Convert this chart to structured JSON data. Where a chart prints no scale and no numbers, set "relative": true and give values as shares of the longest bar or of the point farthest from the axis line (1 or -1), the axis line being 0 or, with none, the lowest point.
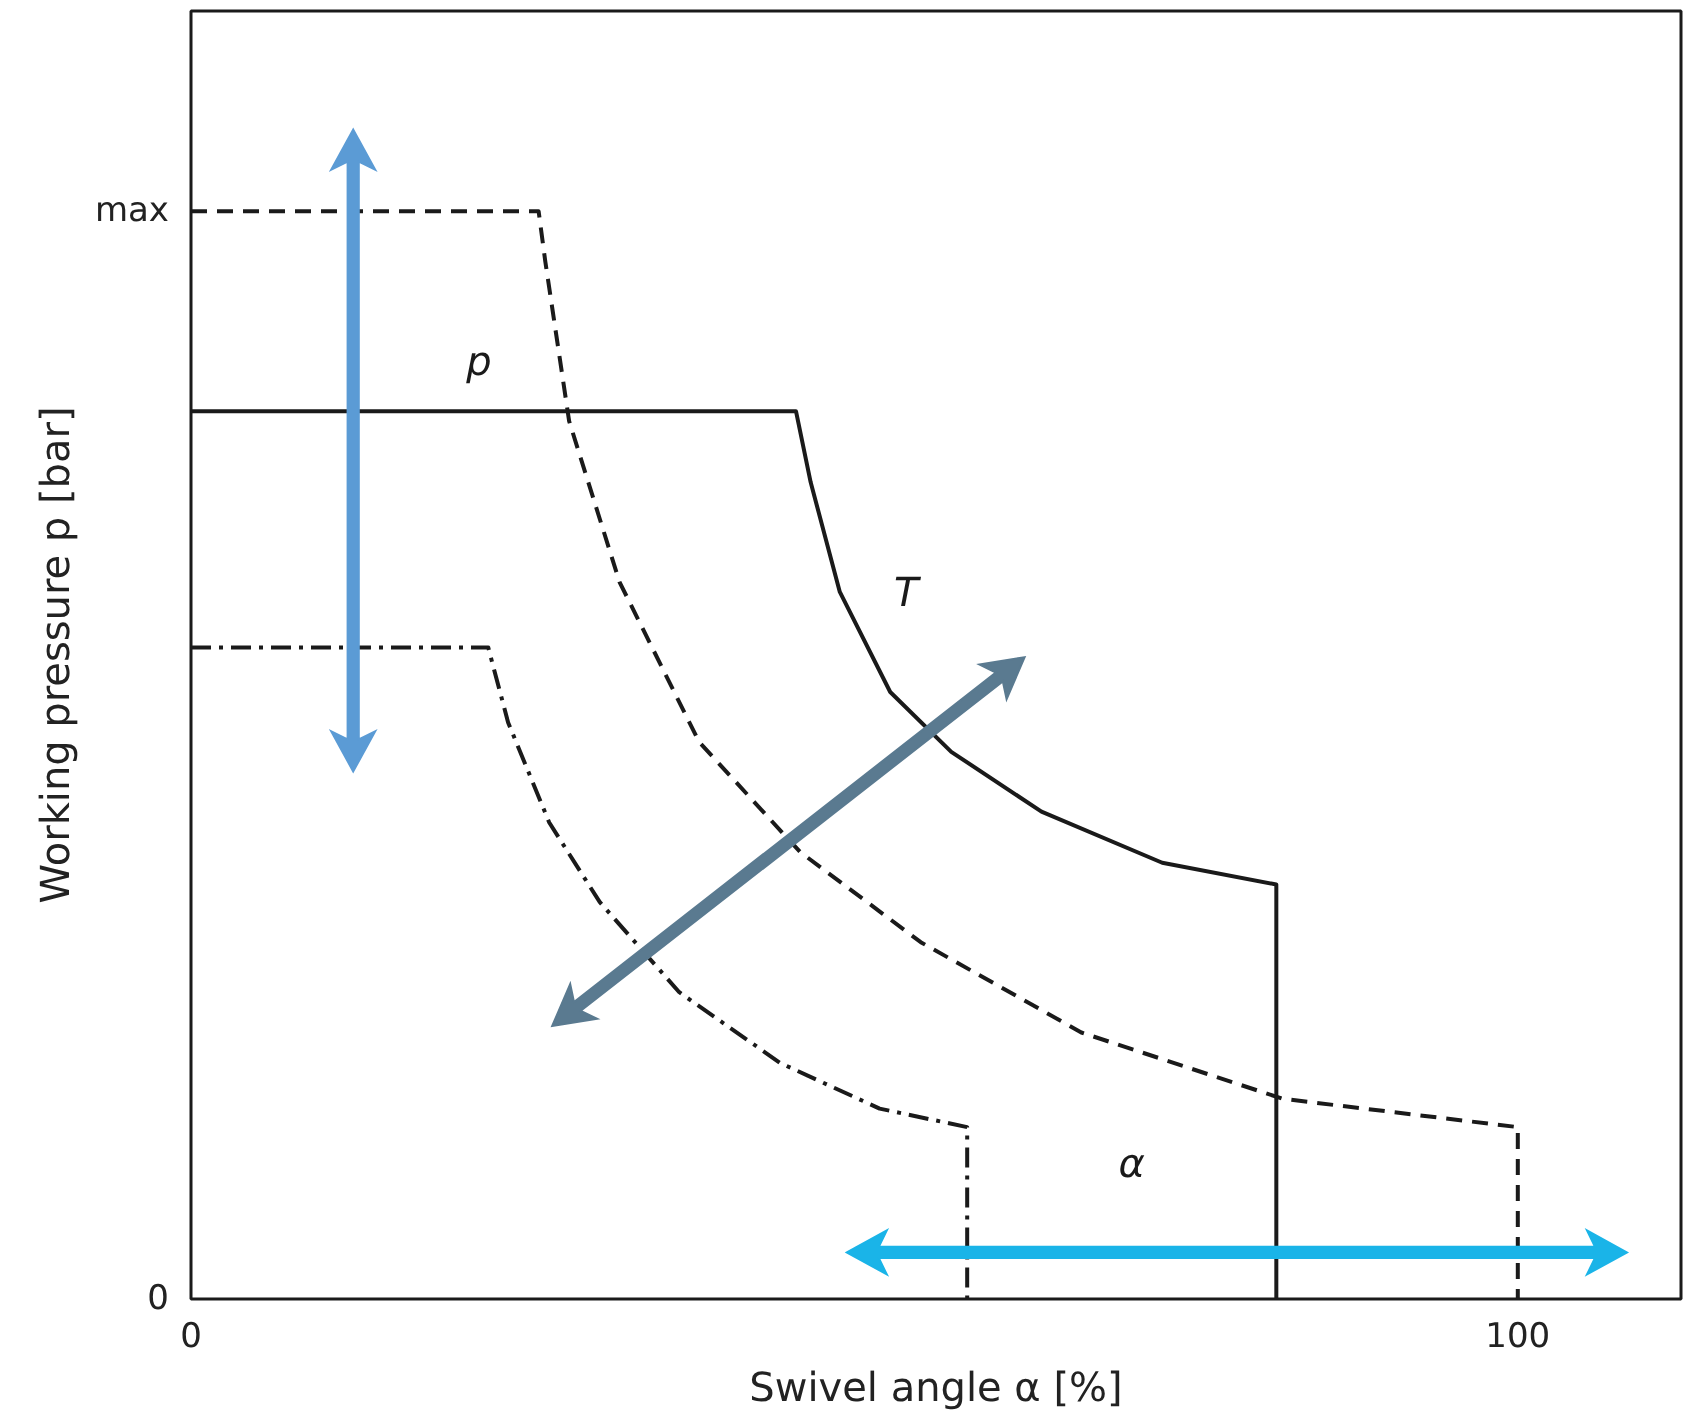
{
  "chart_data": {
    "type": "line",
    "relative": true,
    "xlabel": "Swivel angle α [%]",
    "ylabel": "Working pressure p [bar]",
    "xlim": [
      0,
      112.3
    ],
    "xticks": [
      0,
      100
    ],
    "grid": false,
    "marker": "none",
    "series": [
      {
        "color": "#1a1a1a",
        "line_style": "dashed",
        "x": [
          0,
          26.2,
          26.7,
          28.5,
          32.3,
          38.3,
          45.9,
          55.0,
          67.1,
          82.3,
          100,
          100
        ],
        "values": [
          1.0,
          1.0,
          0.954,
          0.807,
          0.659,
          0.512,
          0.411,
          0.328,
          0.245,
          0.184,
          0.158,
          0
        ]
      },
      {
        "color": "#1a1a1a",
        "line_style": "solid",
        "x": [
          0,
          45.6,
          46.7,
          48.9,
          52.7,
          57.3,
          64.1,
          73.2,
          81.8,
          81.8
        ],
        "values": [
          0.816,
          0.816,
          0.751,
          0.65,
          0.558,
          0.503,
          0.448,
          0.401,
          0.381,
          0
        ]
      },
      {
        "color": "#1a1a1a",
        "line_style": "dashdot",
        "x": [
          0,
          22.4,
          23.9,
          27.0,
          30.8,
          36.8,
          44.4,
          51.9,
          58.5,
          58.5
        ],
        "values": [
          0.599,
          0.599,
          0.53,
          0.438,
          0.365,
          0.282,
          0.217,
          0.175,
          0.158,
          0
        ]
      }
    ],
    "annotations": [
      "max",
      "0",
      "p",
      "T",
      "α"
    ]
  }
}
